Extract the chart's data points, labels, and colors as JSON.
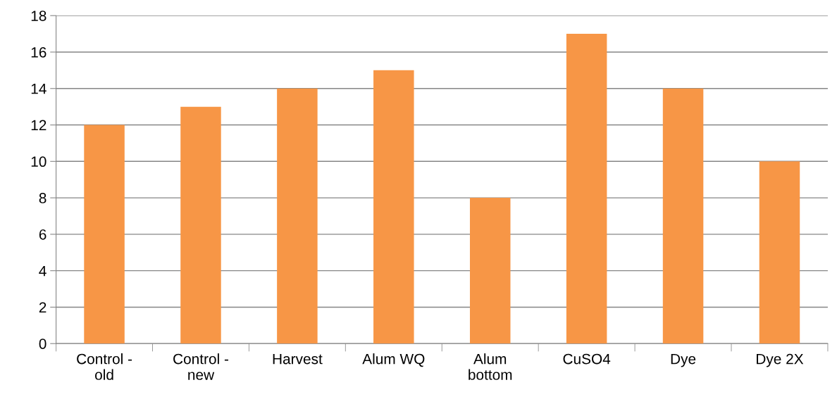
{
  "chart_data": {
    "type": "bar",
    "categories": [
      "Control -\nold",
      "Control -\nnew",
      "Harvest",
      "Alum WQ",
      "Alum\nbottom",
      "CuSO4",
      "Dye",
      "Dye 2X"
    ],
    "values": [
      12,
      13,
      14,
      15,
      8,
      17,
      14,
      10
    ],
    "color": "#f79646",
    "ylim": [
      0,
      18
    ],
    "yticks": [
      0,
      2,
      4,
      6,
      8,
      10,
      12,
      14,
      16,
      18
    ],
    "grid": "y"
  }
}
